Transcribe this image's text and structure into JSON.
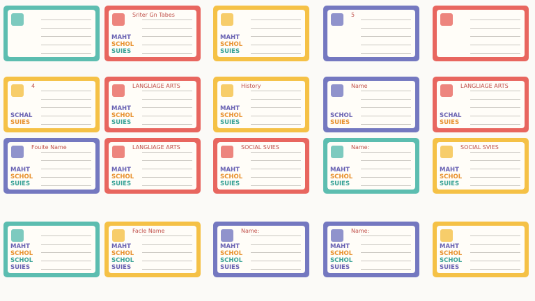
{
  "cards": [
    {
      "color": "#5cbdb0",
      "words": []
    },
    {
      "color": "#e8665f",
      "title": "Sriter Gn Tabes",
      "words": [
        "MAHT",
        "SCHOL",
        "SUIES"
      ]
    },
    {
      "color": "#f5c146",
      "words": [
        "MAHT",
        "SCHOL",
        "SUIES"
      ]
    },
    {
      "color": "#7478c0",
      "title": "5",
      "words": []
    },
    {
      "color": "#e8665f",
      "words": []
    },
    {
      "color": "#f5c146",
      "title": "4",
      "words": [
        "SCHAL",
        "SUIES"
      ]
    },
    {
      "color": "#e8665f",
      "title": "LANGLIAGE ARTS",
      "words": [
        "MAHT",
        "SCHOL",
        "SUIES"
      ]
    },
    {
      "color": "#f5c146",
      "title": "History",
      "words": [
        "MAHT",
        "SCHOL",
        "SUIES"
      ]
    },
    {
      "color": "#7478c0",
      "title": "Name",
      "words": [
        "SCHOL",
        "SUIES"
      ]
    },
    {
      "color": "#e8665f",
      "title": "LANGLIAGE ARTS",
      "words": [
        "SCHAL",
        "SUIES"
      ]
    },
    {
      "color": "#7478c0",
      "title": "Fouite Name",
      "words": [
        "MAHT",
        "SCHOL",
        "SUIES"
      ]
    },
    {
      "color": "#e8665f",
      "title": "LANGLIAGE ARTS",
      "words": [
        "MAHT",
        "SCHOL",
        "SUIES"
      ]
    },
    {
      "color": "#e8665f",
      "title": "SOCIAL SVIES",
      "words": [
        "MAHT",
        "SCHOL",
        "SUIES"
      ]
    },
    {
      "color": "#5cbdb0",
      "title": "Name:",
      "words": [
        "MAHT",
        "SCHOL",
        "SUIES"
      ]
    },
    {
      "color": "#f5c146",
      "title": "SOCIAL SVIES",
      "words": [
        "MAHT",
        "SCHOL",
        "SUIES"
      ]
    },
    {
      "color": "#5cbdb0",
      "words": [
        "MAHT",
        "SCHOL",
        "SCHOL",
        "SUIES"
      ]
    },
    {
      "color": "#f5c146",
      "title": "Facle Name",
      "words": [
        "MAHT",
        "SCHOL",
        "SCHOL",
        "SUIES"
      ]
    },
    {
      "color": "#7478c0",
      "title": "Name:",
      "words": [
        "MAHT",
        "SCHOL",
        "SCHOL",
        "SUIES"
      ]
    },
    {
      "color": "#7478c0",
      "title": "Name:",
      "words": [
        "MAHT",
        "SCHOL",
        "SCHOL",
        "SUIES"
      ]
    },
    {
      "color": "#f5c146",
      "words": [
        "MAHT",
        "SCHOL",
        "SCHOL",
        "SUIES"
      ]
    }
  ]
}
